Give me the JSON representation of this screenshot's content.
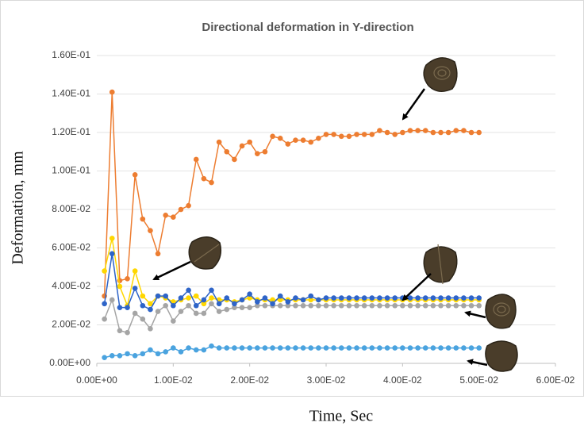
{
  "chart_data": {
    "type": "line",
    "title": "Directional deformation in Y-direction",
    "xlabel": "Time, Sec",
    "ylabel": "Deformation, mm",
    "x": [
      0.001,
      0.002,
      0.003,
      0.004,
      0.005,
      0.006,
      0.007,
      0.008,
      0.009,
      0.01,
      0.011,
      0.012,
      0.013,
      0.014,
      0.015,
      0.016,
      0.017,
      0.018,
      0.019,
      0.02,
      0.021,
      0.022,
      0.023,
      0.024,
      0.025,
      0.026,
      0.027,
      0.028,
      0.029,
      0.03,
      0.031,
      0.032,
      0.033,
      0.034,
      0.035,
      0.036,
      0.037,
      0.038,
      0.039,
      0.04,
      0.041,
      0.042,
      0.043,
      0.044,
      0.045,
      0.046,
      0.047,
      0.048,
      0.049,
      0.05
    ],
    "series": [
      {
        "color": "#ed7d31",
        "values": [
          0.035,
          0.141,
          0.043,
          0.044,
          0.098,
          0.075,
          0.069,
          0.057,
          0.077,
          0.076,
          0.08,
          0.082,
          0.106,
          0.096,
          0.094,
          0.115,
          0.11,
          0.106,
          0.113,
          0.115,
          0.109,
          0.11,
          0.118,
          0.117,
          0.114,
          0.116,
          0.116,
          0.115,
          0.117,
          0.119,
          0.119,
          0.118,
          0.118,
          0.119,
          0.119,
          0.119,
          0.121,
          0.12,
          0.119,
          0.12,
          0.121,
          0.121,
          0.121,
          0.12,
          0.12,
          0.12,
          0.121,
          0.121,
          0.12,
          0.12
        ]
      },
      {
        "color": "#ffd700",
        "values": [
          0.048,
          0.065,
          0.04,
          0.03,
          0.048,
          0.035,
          0.031,
          0.035,
          0.034,
          0.032,
          0.033,
          0.034,
          0.035,
          0.031,
          0.034,
          0.033,
          0.033,
          0.032,
          0.033,
          0.034,
          0.033,
          0.033,
          0.033,
          0.033,
          0.033,
          0.033,
          0.033,
          0.033,
          0.033,
          0.033,
          0.033,
          0.033,
          0.033,
          0.033,
          0.033,
          0.033,
          0.033,
          0.033,
          0.033,
          0.033,
          0.033,
          0.033,
          0.033,
          0.033,
          0.033,
          0.033,
          0.033,
          0.033,
          0.033,
          0.033
        ]
      },
      {
        "color": "#a5a5a5",
        "values": [
          0.023,
          0.033,
          0.017,
          0.016,
          0.026,
          0.023,
          0.018,
          0.027,
          0.03,
          0.022,
          0.027,
          0.03,
          0.026,
          0.026,
          0.031,
          0.027,
          0.028,
          0.029,
          0.029,
          0.029,
          0.03,
          0.03,
          0.03,
          0.03,
          0.03,
          0.03,
          0.03,
          0.03,
          0.03,
          0.03,
          0.03,
          0.03,
          0.03,
          0.03,
          0.03,
          0.03,
          0.03,
          0.03,
          0.03,
          0.03,
          0.03,
          0.03,
          0.03,
          0.03,
          0.03,
          0.03,
          0.03,
          0.03,
          0.03,
          0.03
        ]
      },
      {
        "color": "#2e64c8",
        "values": [
          0.031,
          0.057,
          0.029,
          0.029,
          0.039,
          0.03,
          0.028,
          0.035,
          0.035,
          0.03,
          0.034,
          0.038,
          0.03,
          0.033,
          0.038,
          0.031,
          0.034,
          0.031,
          0.033,
          0.036,
          0.032,
          0.034,
          0.031,
          0.035,
          0.032,
          0.034,
          0.033,
          0.035,
          0.033,
          0.034,
          0.034,
          0.034,
          0.034,
          0.034,
          0.034,
          0.034,
          0.034,
          0.034,
          0.034,
          0.034,
          0.034,
          0.034,
          0.034,
          0.034,
          0.034,
          0.034,
          0.034,
          0.034,
          0.034,
          0.034
        ]
      },
      {
        "color": "#4aa3df",
        "values": [
          0.003,
          0.004,
          0.004,
          0.005,
          0.004,
          0.005,
          0.007,
          0.005,
          0.006,
          0.008,
          0.006,
          0.008,
          0.007,
          0.007,
          0.009,
          0.008,
          0.008,
          0.008,
          0.008,
          0.008,
          0.008,
          0.008,
          0.008,
          0.008,
          0.008,
          0.008,
          0.008,
          0.008,
          0.008,
          0.008,
          0.008,
          0.008,
          0.008,
          0.008,
          0.008,
          0.008,
          0.008,
          0.008,
          0.008,
          0.008,
          0.008,
          0.008,
          0.008,
          0.008,
          0.008,
          0.008,
          0.008,
          0.008,
          0.008,
          0.008
        ]
      }
    ],
    "xlim": [
      0,
      0.06
    ],
    "xticks": [
      {
        "value": 0,
        "label": "0.00E+00"
      },
      {
        "value": 0.01,
        "label": "1.00E-02"
      },
      {
        "value": 0.02,
        "label": "2.00E-02"
      },
      {
        "value": 0.03,
        "label": "3.00E-02"
      },
      {
        "value": 0.04,
        "label": "4.00E-02"
      },
      {
        "value": 0.05,
        "label": "5.00E-02"
      },
      {
        "value": 0.06,
        "label": "6.00E-02"
      }
    ],
    "ylim": [
      0,
      0.16
    ],
    "yticks": [
      {
        "value": 0,
        "label": "0.00E+00"
      },
      {
        "value": 0.02,
        "label": "2.00E-02"
      },
      {
        "value": 0.04,
        "label": "4.00E-02"
      },
      {
        "value": 0.06,
        "label": "6.00E-02"
      },
      {
        "value": 0.08,
        "label": "8.00E-02"
      },
      {
        "value": 0.1,
        "label": "1.00E-01"
      },
      {
        "value": 0.12,
        "label": "1.20E-01"
      },
      {
        "value": 0.14,
        "label": "1.40E-01"
      },
      {
        "value": 0.16,
        "label": "1.60E-01"
      }
    ],
    "grid": true
  }
}
